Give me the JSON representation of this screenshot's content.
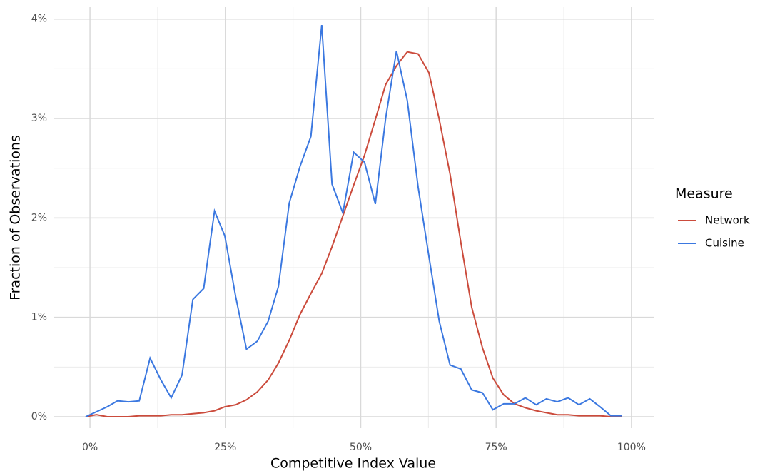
{
  "chart_data": {
    "type": "line",
    "x_label": "Competitive Index Value",
    "y_label": "Fraction of Observations",
    "legend_title": "Measure",
    "legend": "right",
    "grid": true,
    "xlim": [
      -6.6,
      104.1
    ],
    "ylim": [
      -0.115,
      4.12
    ],
    "xticks": [
      {
        "value": 0,
        "label": "0%"
      },
      {
        "value": 25,
        "label": "25%"
      },
      {
        "value": 50,
        "label": "50%"
      },
      {
        "value": 75,
        "label": "75%"
      },
      {
        "value": 100,
        "label": "100%"
      }
    ],
    "xticks_minor": [
      12.5,
      37.5,
      62.5,
      87.5
    ],
    "yticks": [
      {
        "value": 0,
        "label": "0%"
      },
      {
        "value": 1,
        "label": "1%"
      },
      {
        "value": 2,
        "label": "2%"
      },
      {
        "value": 3,
        "label": "3%"
      },
      {
        "value": 4,
        "label": "4%"
      }
    ],
    "yticks_minor": [
      0.5,
      1.5,
      2.5,
      3.5
    ],
    "x": [
      -0.8,
      1.2,
      3.2,
      5.1,
      7.1,
      9.1,
      11.1,
      13.1,
      15.0,
      17.0,
      19.0,
      21.0,
      23.0,
      24.9,
      26.9,
      28.9,
      30.9,
      32.9,
      34.8,
      36.8,
      38.8,
      40.8,
      42.8,
      44.7,
      46.7,
      48.7,
      50.7,
      52.7,
      54.6,
      56.6,
      58.6,
      60.6,
      62.6,
      64.5,
      66.5,
      68.5,
      70.5,
      72.5,
      74.4,
      76.4,
      78.4,
      80.4,
      82.4,
      84.3,
      86.3,
      88.3,
      90.3,
      92.3,
      94.2,
      96.2,
      98.2
    ],
    "series": [
      {
        "name": "Network",
        "color": "#cb4b3c",
        "values": [
          0,
          0.02,
          0,
          0,
          0,
          0.01,
          0.01,
          0.01,
          0.02,
          0.02,
          0.03,
          0.04,
          0.06,
          0.1,
          0.12,
          0.17,
          0.25,
          0.37,
          0.54,
          0.77,
          1.03,
          1.24,
          1.44,
          1.71,
          2.02,
          2.33,
          2.63,
          2.99,
          3.34,
          3.53,
          3.67,
          3.65,
          3.46,
          2.99,
          2.44,
          1.75,
          1.1,
          0.69,
          0.39,
          0.22,
          0.13,
          0.09,
          0.06,
          0.04,
          0.02,
          0.02,
          0.01,
          0.01,
          0.01,
          0,
          0
        ]
      },
      {
        "name": "Cuisine",
        "color": "#3b78e0",
        "values": [
          0,
          0.05,
          0.1,
          0.16,
          0.15,
          0.16,
          0.59,
          0.37,
          0.19,
          0.42,
          1.18,
          1.29,
          2.07,
          1.82,
          1.21,
          0.68,
          0.76,
          0.96,
          1.31,
          2.15,
          2.52,
          2.82,
          3.94,
          2.34,
          2.05,
          2.66,
          2.56,
          2.14,
          3.0,
          3.68,
          3.18,
          2.31,
          1.61,
          0.96,
          0.52,
          0.48,
          0.27,
          0.24,
          0.07,
          0.13,
          0.13,
          0.19,
          0.12,
          0.18,
          0.15,
          0.19,
          0.12,
          0.18,
          0.1,
          0.01,
          0.01
        ]
      }
    ]
  }
}
